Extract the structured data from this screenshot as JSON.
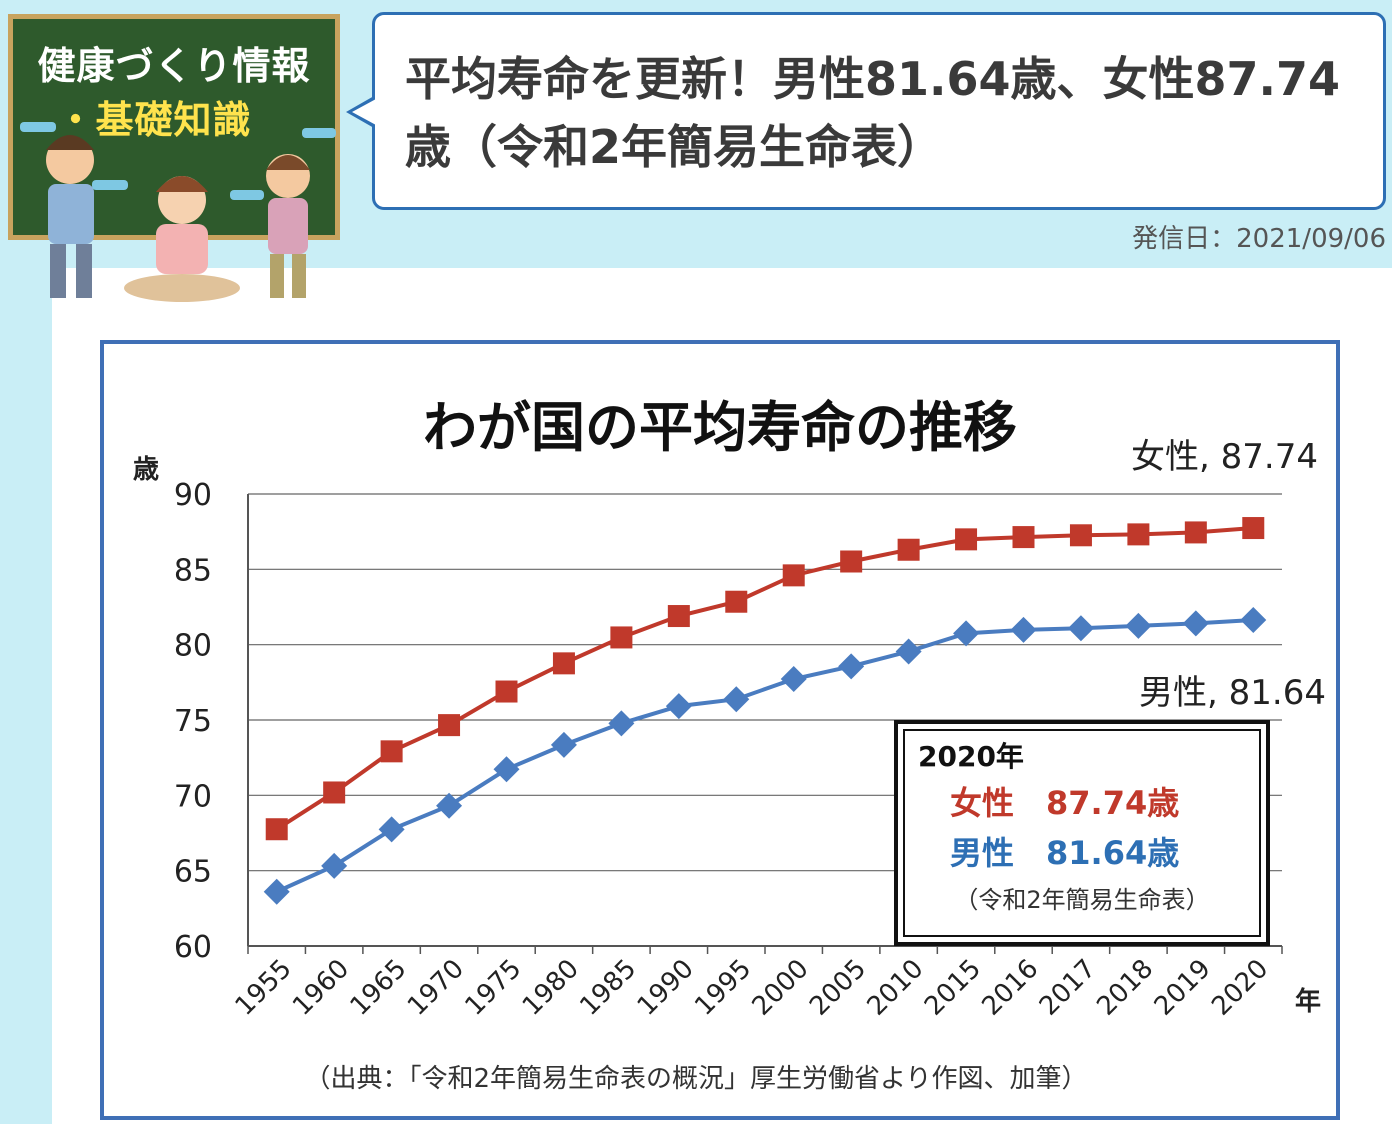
{
  "header": {
    "logo_line1": "健康づくり情報",
    "logo_line2": "・基礎知識",
    "headline": "平均寿命を更新！男性81.64歳、女性87.74歳（令和2年簡易生命表）",
    "date": "発信日：2021/09/06"
  },
  "chart_data": {
    "type": "line",
    "title": "わが国の平均寿命の推移",
    "ylabel": "歳",
    "xlabel": "年",
    "ylim": [
      60,
      90
    ],
    "yticks": [
      60,
      65,
      70,
      75,
      80,
      85,
      90
    ],
    "grid": true,
    "categories": [
      "1955",
      "1960",
      "1965",
      "1970",
      "1975",
      "1980",
      "1985",
      "1990",
      "1995",
      "2000",
      "2005",
      "2010",
      "2015",
      "2016",
      "2017",
      "2018",
      "2019",
      "2020"
    ],
    "series": [
      {
        "name": "女性",
        "color": "#c0392b",
        "marker": "square",
        "values": [
          67.75,
          70.19,
          72.92,
          74.66,
          76.89,
          78.76,
          80.48,
          81.9,
          82.85,
          84.6,
          85.52,
          86.3,
          86.99,
          87.14,
          87.26,
          87.32,
          87.45,
          87.74
        ],
        "end_label": "女性, 87.74"
      },
      {
        "name": "男性",
        "color": "#4a7cc0",
        "marker": "diamond",
        "values": [
          63.6,
          65.32,
          67.74,
          69.31,
          71.73,
          73.35,
          74.78,
          75.92,
          76.38,
          77.72,
          78.56,
          79.55,
          80.75,
          80.98,
          81.09,
          81.25,
          81.41,
          81.64
        ],
        "end_label": "男性, 81.64"
      }
    ],
    "annotation_box": {
      "title": "2020年",
      "female": "女性　87.74歳",
      "male": "男性　81.64歳",
      "note": "（令和2年簡易生命表）"
    },
    "source": "（出典：「令和2年簡易生命表の概況」厚生労働省より作図、加筆）"
  }
}
